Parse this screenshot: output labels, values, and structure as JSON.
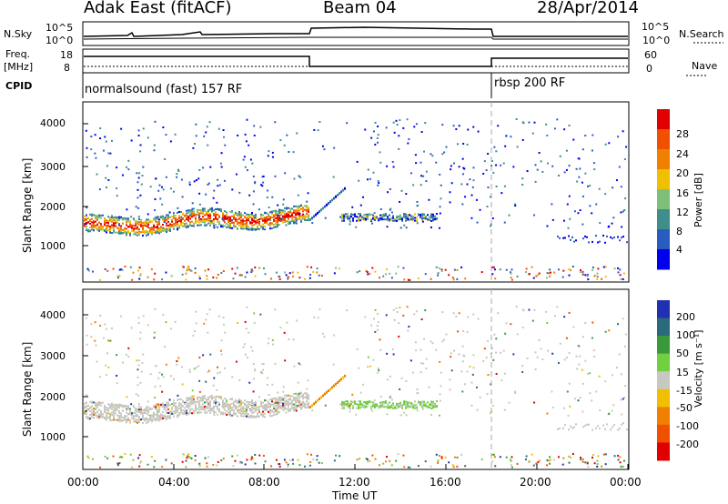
{
  "header": {
    "title_left": "Adak East (fitACF)",
    "title_center": "Beam 04",
    "title_right": "28/Apr/2014"
  },
  "side_labels": {
    "nsky": "N.Sky",
    "nsky_ticks": [
      "10^5",
      "10^0"
    ],
    "freq": "Freq.",
    "freq_unit": "[MHz]",
    "freq_ticks": [
      "18",
      "8"
    ],
    "cpid": "CPID",
    "nsearch": "N.Search",
    "nsearch_ticks": [
      "10^5",
      "10^0"
    ],
    "nave": "Nave",
    "nave_ticks": [
      "60",
      "0"
    ]
  },
  "cpid_labels": [
    "normalsound (fast) 157 RF",
    "rbsp 200 RF"
  ],
  "colors": {
    "velocity_ground": "#c8c8c0",
    "power_high": "#e00000",
    "power_mid": "#50a050",
    "power_low": "#0040e0"
  },
  "chart_data": [
    {
      "type": "line",
      "name": "sounding-panel",
      "series": [
        {
          "name": "N.Sky",
          "x_hours": [
            0,
            10,
            18,
            24
          ],
          "values": [
            5,
            8,
            3,
            3
          ]
        },
        {
          "name": "Freq.",
          "x_hours": [
            0,
            10,
            18,
            24
          ],
          "values": [
            14,
            10,
            14,
            14
          ]
        },
        {
          "name": "Nave",
          "x_hours": [
            0,
            10,
            18,
            24
          ],
          "values": [
            30,
            30,
            30,
            30
          ]
        }
      ],
      "annotations": [
        "normalsound (fast) 157 RF",
        "rbsp 200 RF"
      ],
      "mode_change_hour": 18
    },
    {
      "type": "heatmap",
      "name": "power",
      "ylabel": "Slant Range [km]",
      "xlabel": "",
      "ylim": [
        200,
        4500
      ],
      "y_ticks": [
        "1000",
        "2000",
        "3000",
        "4000"
      ],
      "x_range_hours": [
        0,
        24
      ],
      "colorbar": {
        "label": "Power [dB]",
        "ticks": [
          "4",
          "8",
          "12",
          "16",
          "20",
          "24",
          "28"
        ],
        "colors": [
          "#0000ee",
          "#2a5cc0",
          "#3f8e8c",
          "#7ec07a",
          "#f0c000",
          "#f08000",
          "#f05000",
          "#e00000"
        ]
      }
    },
    {
      "type": "heatmap",
      "name": "velocity",
      "ylabel": "Slant Range [km]",
      "xlabel": "Time UT",
      "ylim": [
        200,
        4500
      ],
      "y_ticks": [
        "1000",
        "2000",
        "3000",
        "4000"
      ],
      "x_ticks": [
        "00:00",
        "04:00",
        "08:00",
        "12:00",
        "16:00",
        "20:00",
        "00:00"
      ],
      "colorbar": {
        "label": "Velocity [m s⁻¹]",
        "ticks": [
          "200",
          "100",
          "50",
          "15",
          "-15",
          "-50",
          "-100",
          "-200"
        ],
        "colors": [
          "#2030b0",
          "#2a6a7c",
          "#3a9a3a",
          "#70d040",
          "#c8c8c0",
          "#f0c000",
          "#f08000",
          "#f05000",
          "#e00000"
        ]
      }
    }
  ]
}
